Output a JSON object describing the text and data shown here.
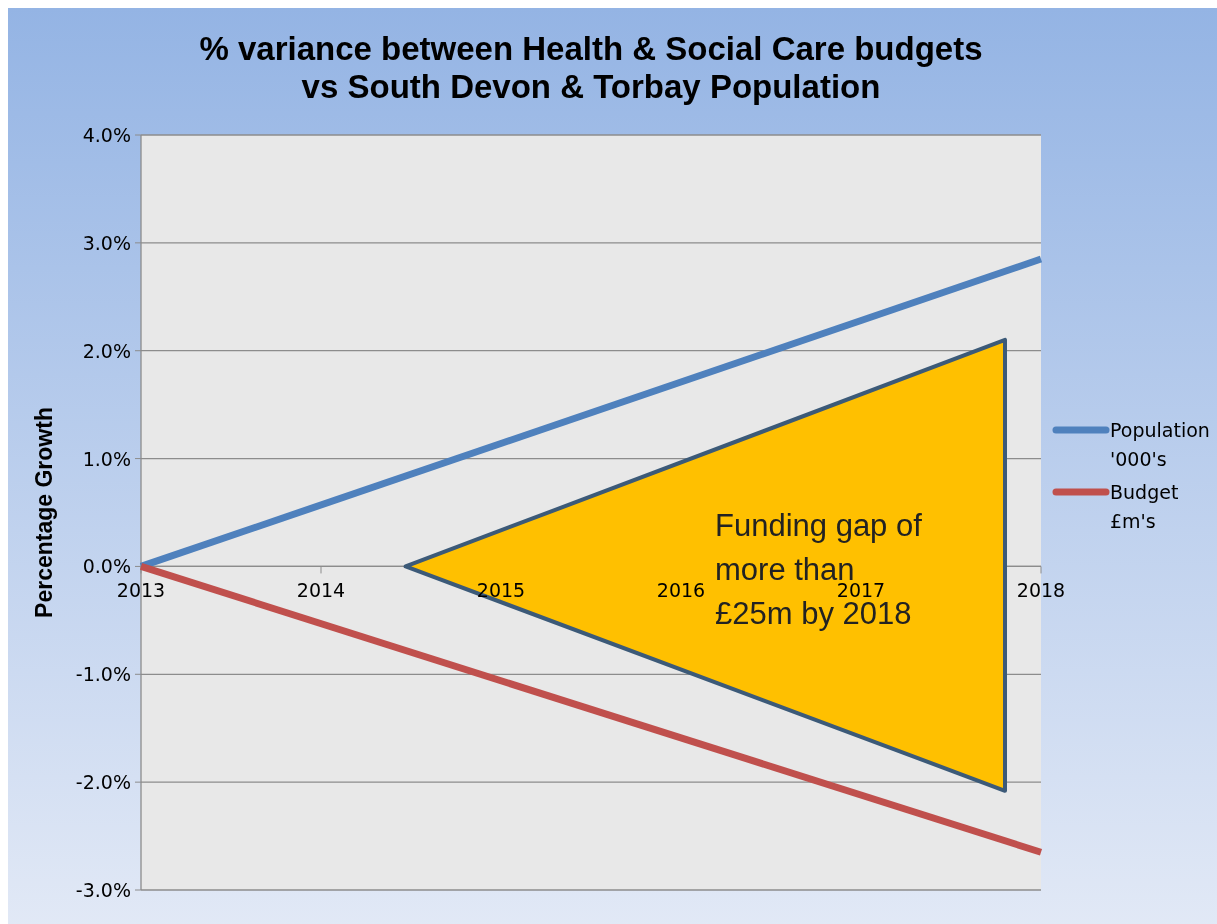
{
  "chart_data": {
    "type": "line",
    "title": "% variance between Health & Social Care budgets\nvs South Devon & Torbay Population",
    "ylabel": "Percentage Growth",
    "x": [
      2013,
      2018
    ],
    "xlim": [
      2013,
      2018
    ],
    "xticks": [
      2013,
      2014,
      2015,
      2016,
      2017,
      2018
    ],
    "ylim": [
      -3,
      4
    ],
    "yticks": [
      {
        "value": -3,
        "label": "-3.0%"
      },
      {
        "value": -2,
        "label": "-2.0%"
      },
      {
        "value": -1,
        "label": "-1.0%"
      },
      {
        "value": 0,
        "label": "0.0%"
      },
      {
        "value": 1,
        "label": "1.0%"
      },
      {
        "value": 2,
        "label": "2.0%"
      },
      {
        "value": 3,
        "label": "3.0%"
      },
      {
        "value": 4,
        "label": "4.0%"
      }
    ],
    "series": [
      {
        "name": "Population '000's",
        "color": "#4f81bd",
        "values": [
          0,
          2.85
        ]
      },
      {
        "name": "Budget £m's",
        "color": "#c0504d",
        "values": [
          0,
          -2.65
        ]
      }
    ],
    "annotations": [
      "Funding gap of\nmore than\n£25m by 2018"
    ],
    "grid": "y",
    "legend": "right",
    "marker": "none",
    "line_style": "solid"
  }
}
